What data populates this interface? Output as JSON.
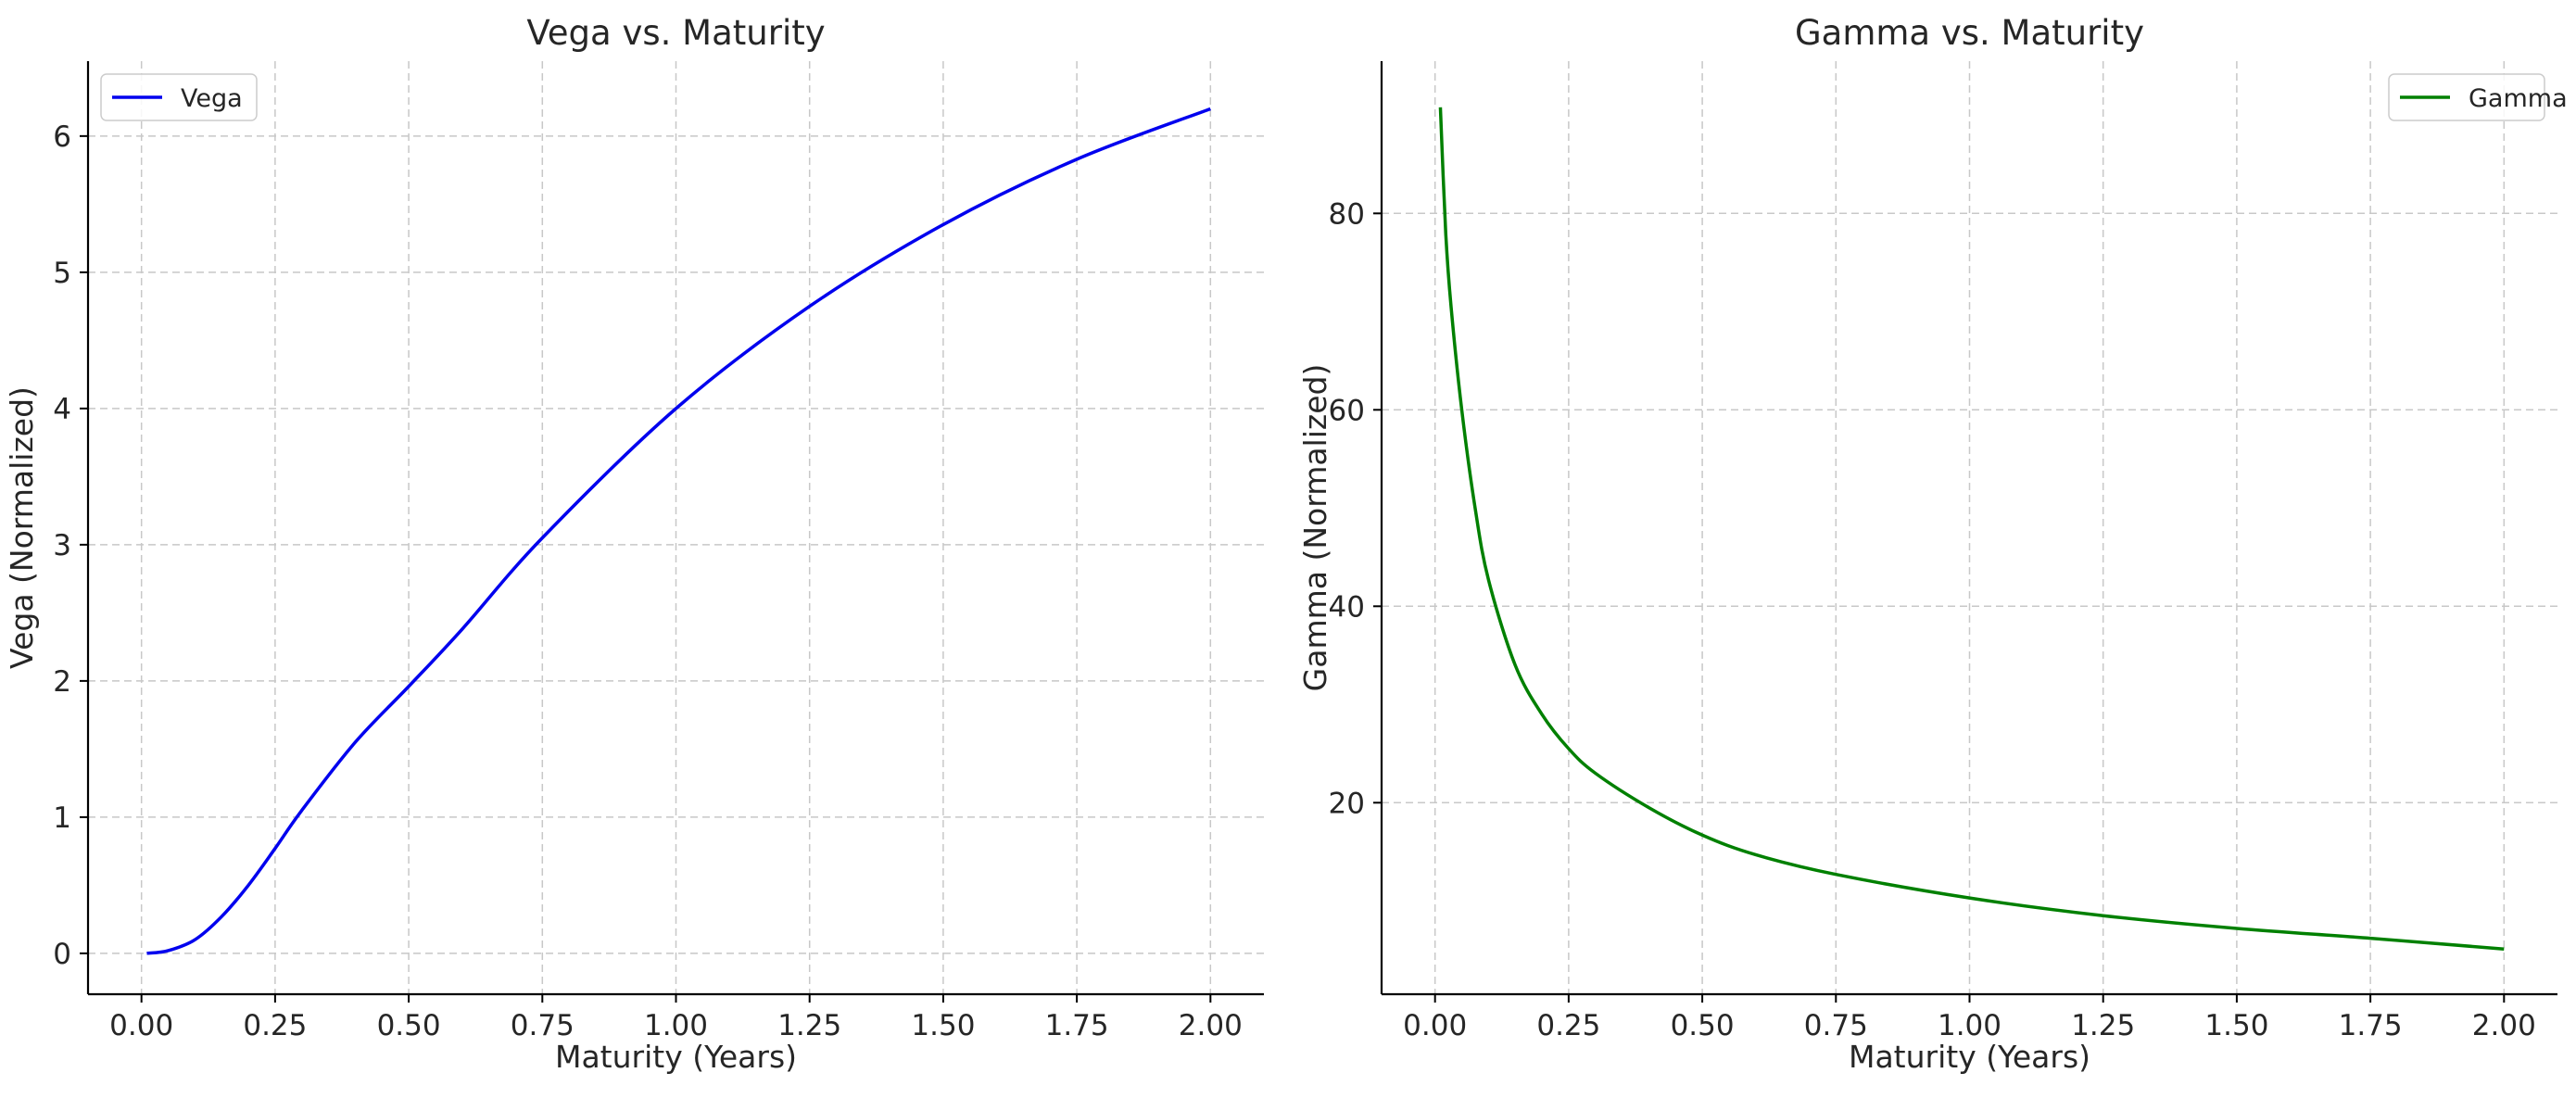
{
  "chart_data": [
    {
      "type": "line",
      "title": "Vega vs. Maturity",
      "xlabel": "Maturity (Years)",
      "ylabel": "Vega (Normalized)",
      "xlim": [
        -0.1,
        2.1
      ],
      "ylim": [
        -0.3,
        6.55
      ],
      "xticks": [
        0.0,
        0.25,
        0.5,
        0.75,
        1.0,
        1.25,
        1.5,
        1.75,
        2.0
      ],
      "xtick_labels": [
        "0.00",
        "0.25",
        "0.50",
        "0.75",
        "1.00",
        "1.25",
        "1.50",
        "1.75",
        "2.00"
      ],
      "yticks": [
        0,
        1,
        2,
        3,
        4,
        5,
        6
      ],
      "ytick_labels": [
        "0",
        "1",
        "2",
        "3",
        "4",
        "5",
        "6"
      ],
      "grid": true,
      "legend": "upper-left",
      "series": [
        {
          "name": "Vega",
          "color": "#0000ee",
          "x": [
            0.01,
            0.05,
            0.1,
            0.15,
            0.2,
            0.25,
            0.3,
            0.4,
            0.5,
            0.6,
            0.75,
            1.0,
            1.25,
            1.5,
            1.75,
            2.0
          ],
          "y": [
            0.0,
            0.02,
            0.1,
            0.27,
            0.5,
            0.77,
            1.05,
            1.55,
            1.96,
            2.38,
            3.05,
            4.0,
            4.75,
            5.35,
            5.83,
            6.2
          ]
        }
      ]
    },
    {
      "type": "line",
      "title": "Gamma vs. Maturity",
      "xlabel": "Maturity (Years)",
      "ylabel": "Gamma (Normalized)",
      "xlim": [
        -0.1,
        2.1
      ],
      "ylim": [
        0.5,
        95.5
      ],
      "xticks": [
        0.0,
        0.25,
        0.5,
        0.75,
        1.0,
        1.25,
        1.5,
        1.75,
        2.0
      ],
      "xtick_labels": [
        "0.00",
        "0.25",
        "0.50",
        "0.75",
        "1.00",
        "1.25",
        "1.50",
        "1.75",
        "2.00"
      ],
      "yticks": [
        20,
        40,
        60,
        80
      ],
      "ytick_labels": [
        "20",
        "40",
        "60",
        "80"
      ],
      "grid": true,
      "legend": "upper-right",
      "series": [
        {
          "name": "Gamma",
          "color": "#008000",
          "x": [
            0.01,
            0.02,
            0.03,
            0.05,
            0.075,
            0.1,
            0.15,
            0.2,
            0.25,
            0.3,
            0.4,
            0.5,
            0.6,
            0.75,
            1.0,
            1.25,
            1.5,
            1.75,
            2.0
          ],
          "y": [
            90.8,
            78.0,
            70.5,
            60.0,
            50.0,
            42.7,
            34.0,
            29.0,
            25.5,
            23.0,
            19.5,
            16.7,
            14.7,
            12.7,
            10.3,
            8.5,
            7.2,
            6.2,
            5.1
          ]
        }
      ]
    }
  ]
}
